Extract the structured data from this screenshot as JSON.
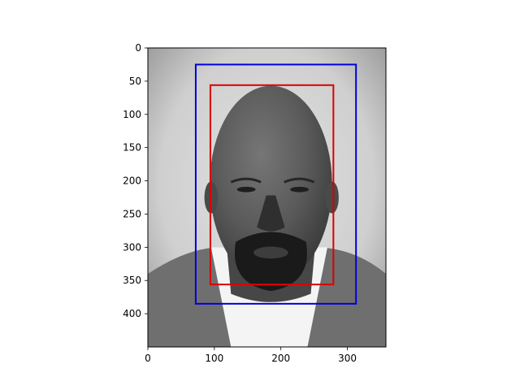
{
  "chart_data": {
    "type": "image",
    "title": "",
    "xlabel": "",
    "ylabel": "",
    "xlim": [
      0,
      358
    ],
    "ylim": [
      450,
      0
    ],
    "image_extent": {
      "width": 358,
      "height": 450
    },
    "image_description": "grayscale portrait photo",
    "x_ticks": [
      0,
      100,
      200,
      300
    ],
    "x_tick_labels": [
      "0",
      "100",
      "200",
      "300"
    ],
    "y_ticks": [
      0,
      50,
      100,
      150,
      200,
      250,
      300,
      350,
      400
    ],
    "y_tick_labels": [
      "0",
      "50",
      "100",
      "150",
      "200",
      "250",
      "300",
      "350",
      "400"
    ],
    "boxes": [
      {
        "name": "outer-box",
        "color": "#0000dd",
        "x0": 72,
        "y0": 25,
        "x1": 313,
        "y1": 385
      },
      {
        "name": "inner-box",
        "color": "#dd0000",
        "x0": 94,
        "y0": 56,
        "x1": 279,
        "y1": 356
      }
    ]
  },
  "colors": {
    "background": "#ffffff",
    "photo_light": "#dcdcdc",
    "photo_mid": "#9a9a9a",
    "photo_dark": "#4d4d4d",
    "skin": "#5c5c5c",
    "shirt_white": "#f2f2f2",
    "uniform": "#7a7a7a"
  }
}
